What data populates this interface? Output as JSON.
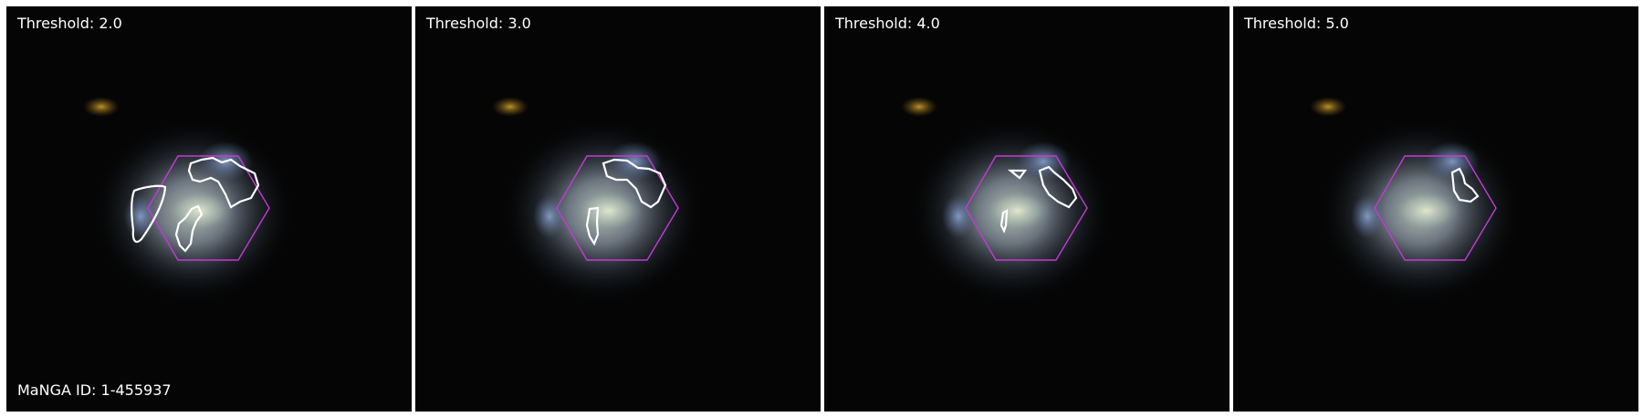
{
  "panels": [
    {
      "threshold_label": "Threshold: 2.0"
    },
    {
      "threshold_label": "Threshold: 3.0"
    },
    {
      "threshold_label": "Threshold: 4.0"
    },
    {
      "threshold_label": "Threshold: 5.0"
    }
  ],
  "manga_id_label": "MaNGA ID: 1-455937",
  "colors": {
    "background": "#050505",
    "hexagon": "#c43ad6",
    "contour": "#ffffff",
    "text": "#ffffff"
  }
}
